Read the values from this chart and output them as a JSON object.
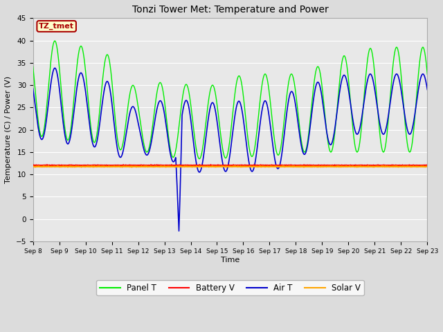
{
  "title": "Tonzi Tower Met: Temperature and Power",
  "ylabel": "Temperature (C) / Power (V)",
  "xlabel": "Time",
  "ylim": [
    -5,
    45
  ],
  "yticks": [
    -5,
    0,
    5,
    10,
    15,
    20,
    25,
    30,
    35,
    40,
    45
  ],
  "annotation_text": "TZ_tmet",
  "annotation_box_color": "#FFFFCC",
  "annotation_border_color": "#AA0000",
  "annotation_text_color": "#AA0000",
  "bg_color": "#DCDCDC",
  "plot_bg_color": "#E8E8E8",
  "grid_color": "#FFFFFF",
  "panel_t_color": "#00EE00",
  "battery_v_color": "#FF0000",
  "air_t_color": "#0000CC",
  "solar_v_color": "#FFA500",
  "legend_labels": [
    "Panel T",
    "Battery V",
    "Air T",
    "Solar V"
  ],
  "tick_labels": [
    "Sep 8",
    "Sep 9",
    "Sep 10",
    "Sep 11",
    "Sep 12",
    "Sep 13",
    "Sep 14",
    "Sep 15",
    "Sep 16",
    "Sep 17",
    "Sep 18",
    "Sep 19",
    "Sep 20",
    "Sep 21",
    "Sep 22",
    "Sep 23"
  ],
  "panel_peaks": [
    39.5,
    40.0,
    38.5,
    36.5,
    28.5,
    31.0,
    30.0,
    30.0,
    32.5,
    32.5,
    32.5,
    34.5,
    37.0,
    38.5
  ],
  "panel_troughs": [
    19.0,
    17.5,
    18.0,
    15.5,
    15.5,
    14.0,
    13.5,
    13.5,
    14.0,
    14.0,
    15.0,
    15.0,
    15.0,
    15.0
  ],
  "air_peaks": [
    33.0,
    34.0,
    32.5,
    30.5,
    24.0,
    27.0,
    26.5,
    26.0,
    26.5,
    26.5,
    29.0,
    31.0,
    32.5
  ],
  "air_troughs": [
    18.5,
    16.5,
    17.5,
    13.5,
    14.5,
    14.0,
    10.5,
    10.5,
    11.0,
    10.0,
    14.0,
    15.5,
    19.0
  ],
  "battery_v_level": 12.0,
  "solar_v_level": 11.75,
  "spike_day": 5.55,
  "spike_value": -3.0
}
